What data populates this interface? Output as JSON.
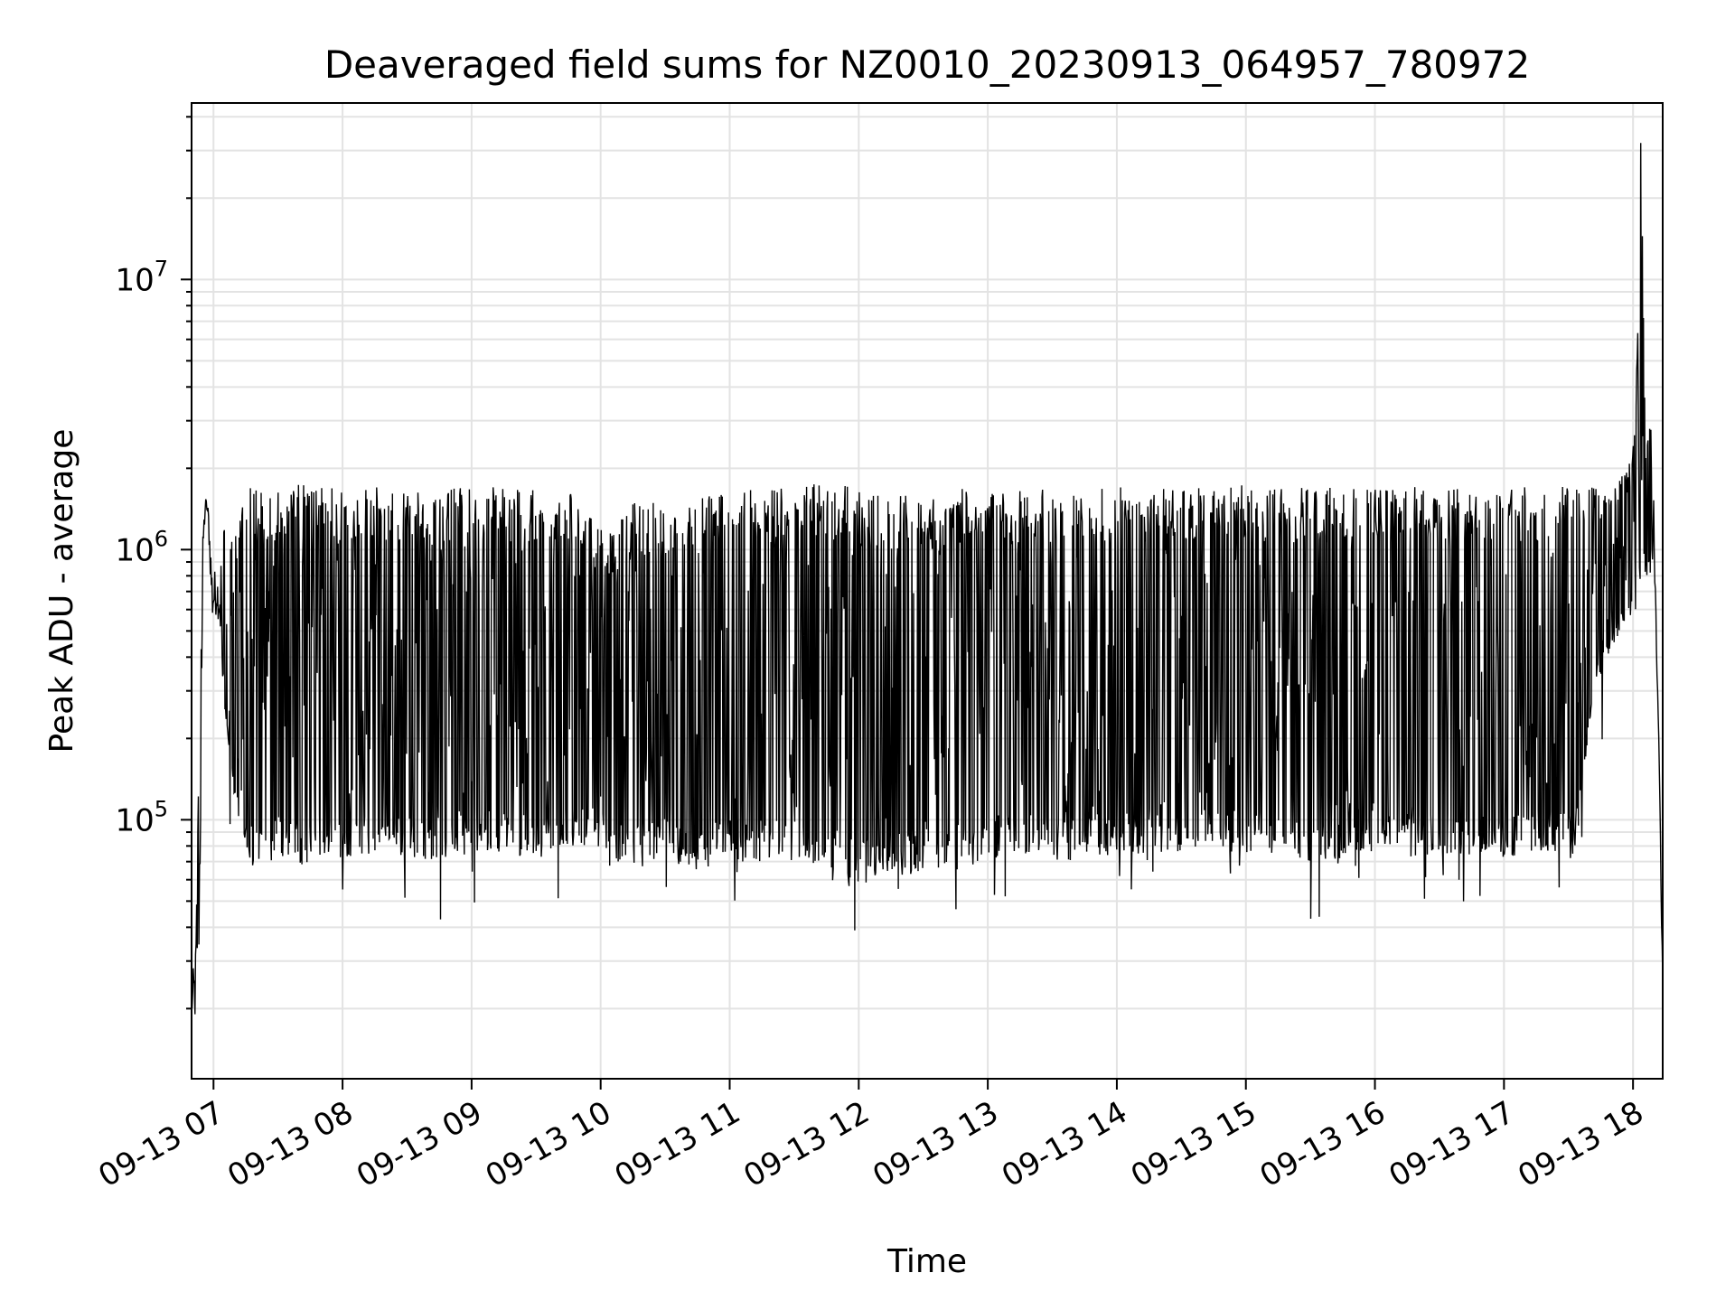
{
  "chart_data": {
    "type": "line",
    "title": "Deaveraged field sums for NZ0010_20230913_064957_780972",
    "xlabel": "Time",
    "ylabel": "Peak ADU - average",
    "yscale": "log",
    "ylim": [
      11000,
      45000000
    ],
    "xlim_hours": [
      6.83,
      18.23
    ],
    "grid": true,
    "line_color": "#000000",
    "x_ticks": [
      {
        "hour": 7,
        "label": "09-13 07"
      },
      {
        "hour": 8,
        "label": "09-13 08"
      },
      {
        "hour": 9,
        "label": "09-13 09"
      },
      {
        "hour": 10,
        "label": "09-13 10"
      },
      {
        "hour": 11,
        "label": "09-13 11"
      },
      {
        "hour": 12,
        "label": "09-13 12"
      },
      {
        "hour": 13,
        "label": "09-13 13"
      },
      {
        "hour": 14,
        "label": "09-13 14"
      },
      {
        "hour": 15,
        "label": "09-13 15"
      },
      {
        "hour": 16,
        "label": "09-13 16"
      },
      {
        "hour": 17,
        "label": "09-13 17"
      },
      {
        "hour": 18,
        "label": "09-13 18"
      }
    ],
    "y_ticks": [
      {
        "value": 100000,
        "base": "10",
        "exp": "5"
      },
      {
        "value": 1000000,
        "base": "10",
        "exp": "6"
      },
      {
        "value": 10000000,
        "base": "10",
        "exp": "7"
      }
    ],
    "series": [
      {
        "x": [
          6.83,
          6.86,
          6.89,
          6.92,
          6.94,
          6.96,
          6.99,
          7.03,
          7.08,
          7.12,
          7.17,
          7.22,
          7.26,
          7.31,
          7.35,
          7.4,
          7.45,
          7.5,
          7.6,
          7.7,
          7.8,
          7.9,
          8.0,
          8.25,
          8.5,
          8.75,
          9.0,
          9.25,
          9.5,
          9.75,
          9.99,
          10.1,
          10.25,
          10.5,
          10.75,
          11.0,
          11.25,
          11.5,
          11.75,
          12.0,
          12.25,
          12.5,
          12.75,
          13.0,
          13.25,
          13.5,
          13.75,
          14.0,
          14.25,
          14.5,
          14.75,
          15.0,
          15.25,
          15.5,
          15.75,
          16.0,
          16.25,
          16.5,
          16.75,
          17.0,
          17.25,
          17.45,
          17.55,
          17.7,
          17.85,
          17.95,
          18.02,
          18.06,
          18.1,
          18.14,
          18.17,
          18.2,
          18.23
        ],
        "low": [
          18000,
          17000,
          30000,
          900000,
          1500000,
          1200000,
          500000,
          600000,
          300000,
          150000,
          110000,
          90000,
          70000,
          65000,
          70000,
          68000,
          70000,
          72000,
          70000,
          68000,
          72000,
          70000,
          72000,
          75000,
          70000,
          72000,
          75000,
          75000,
          72000,
          75000,
          80000,
          70000,
          65000,
          70000,
          65000,
          70000,
          70000,
          70000,
          60000,
          55000,
          60000,
          65000,
          65000,
          70000,
          75000,
          70000,
          70000,
          75000,
          70000,
          75000,
          75000,
          75000,
          70000,
          70000,
          72000,
          75000,
          72000,
          75000,
          75000,
          72000,
          75000,
          75000,
          70000,
          300000,
          450000,
          550000,
          600000,
          700000,
          800000,
          800000,
          600000,
          200000,
          18000
        ],
        "high": [
          25000,
          33000,
          200000,
          1300000,
          1550000,
          1450000,
          900000,
          800000,
          1300000,
          1500000,
          1600000,
          1600000,
          1700000,
          1750000,
          1800000,
          1750000,
          1700000,
          1750000,
          1800000,
          1750000,
          1700000,
          1750000,
          1750000,
          1700000,
          1750000,
          1700000,
          1750000,
          1700000,
          1700000,
          1700000,
          1200000,
          1200000,
          1500000,
          1500000,
          1600000,
          1600000,
          1700000,
          1700000,
          1800000,
          1700000,
          1600000,
          1600000,
          1700000,
          1700000,
          1700000,
          1700000,
          1700000,
          1700000,
          1700000,
          1700000,
          1700000,
          1750000,
          1700000,
          1700000,
          1700000,
          1700000,
          1700000,
          1750000,
          1700000,
          1750000,
          1700000,
          1800000,
          1700000,
          1700000,
          1700000,
          2000000,
          3000000,
          32000000,
          2500000,
          3000000,
          1200000,
          200000,
          30000
        ]
      }
    ]
  }
}
